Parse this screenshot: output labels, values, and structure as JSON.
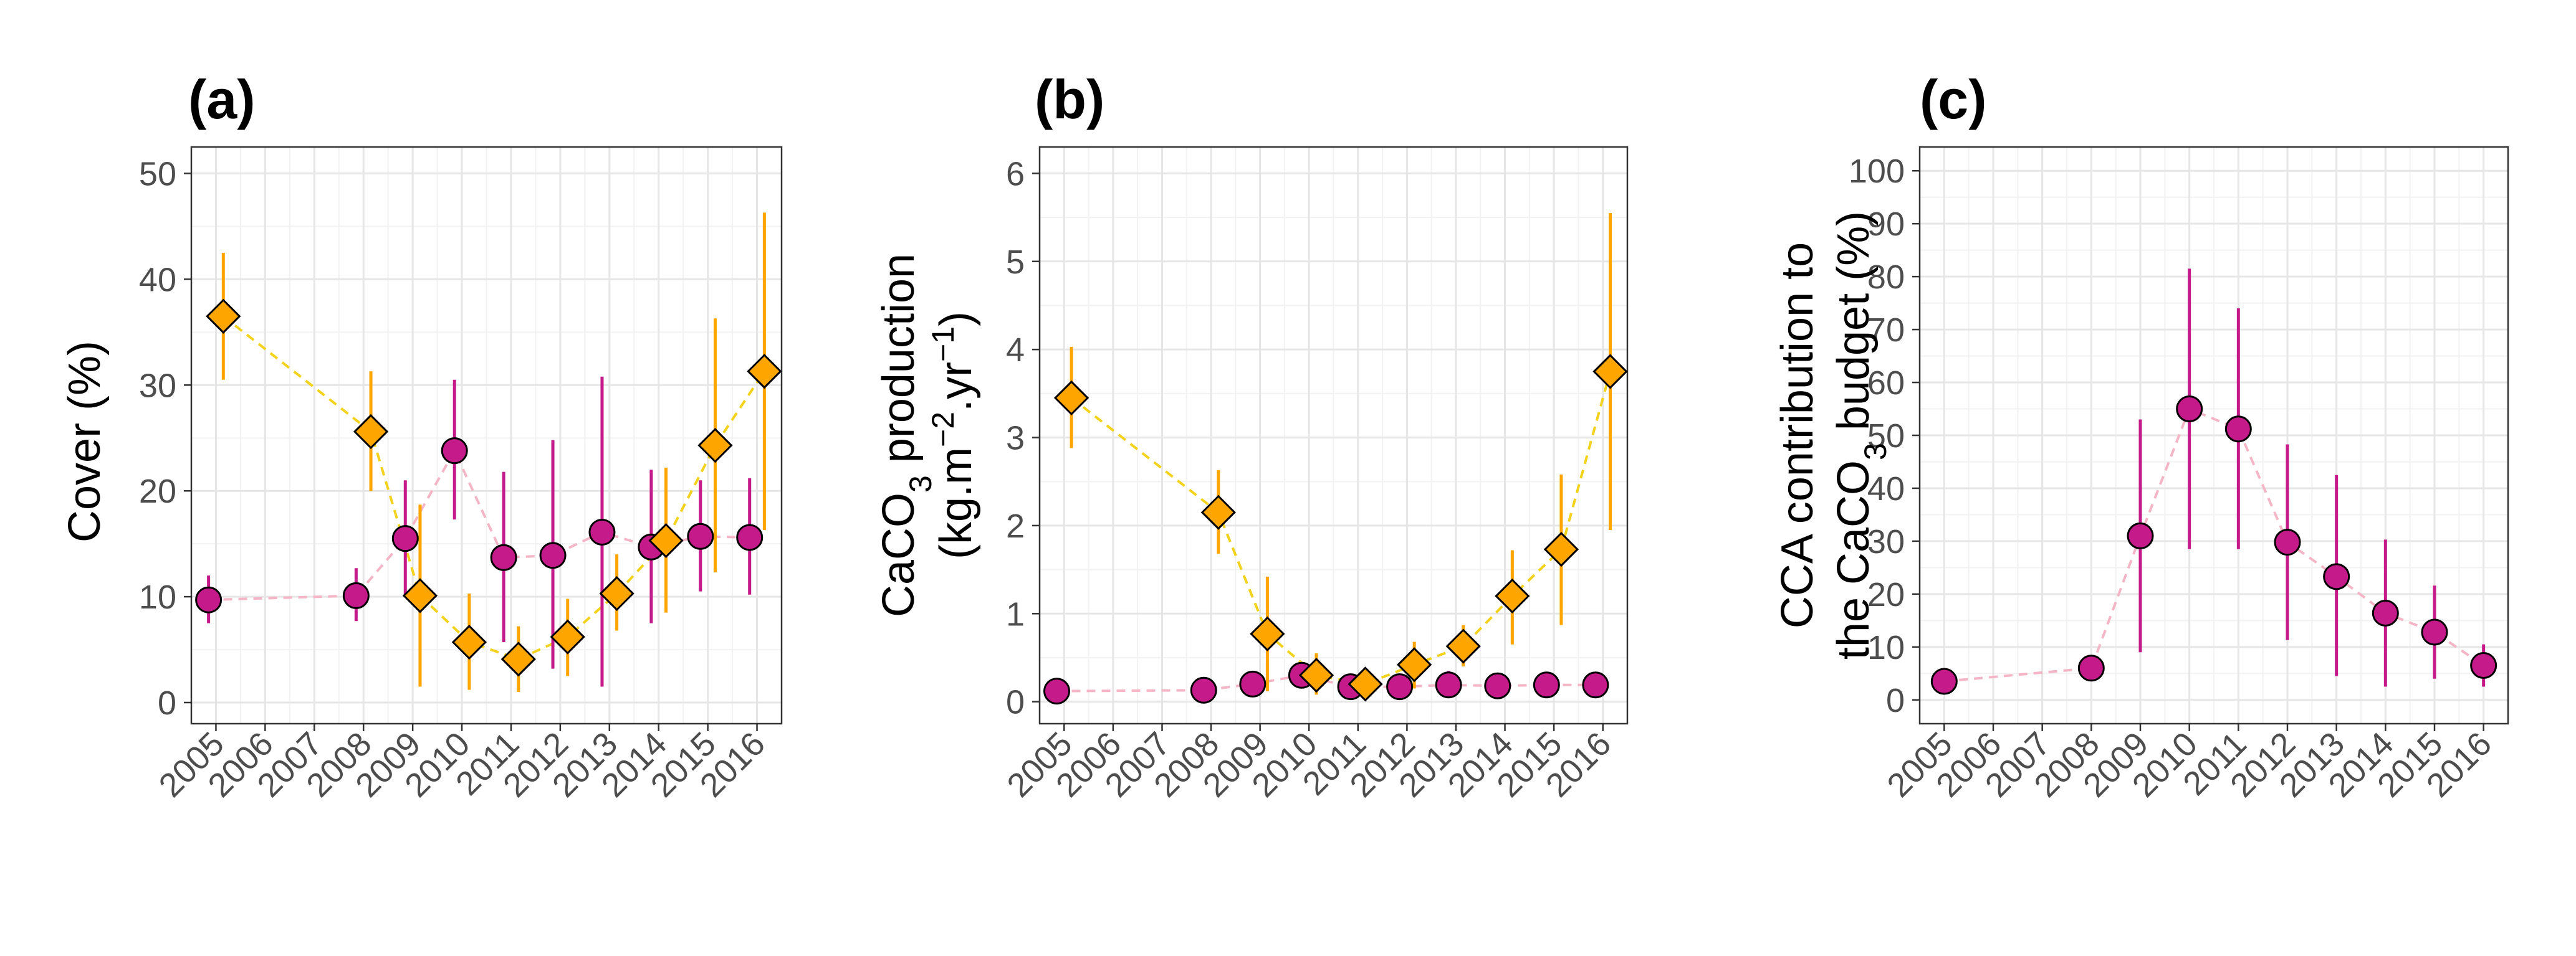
{
  "colors": {
    "cca": "#c51b8a",
    "coral": "#ffa500",
    "cca_line": "#f4b6c6",
    "coral_line": "#f2d21b",
    "grid_major": "#e6e6e6",
    "grid_minor": "#f2f2f2",
    "panel_border": "#333333"
  },
  "chart_data": [
    {
      "type": "scatter",
      "tag": "(a)",
      "ylabel": "Cover (%)",
      "ylim": [
        -2,
        52.5
      ],
      "yticks": [
        0,
        10,
        20,
        30,
        40,
        50
      ],
      "xlim": [
        2004.5,
        2016.5
      ],
      "xticks": [
        2005,
        2006,
        2007,
        2008,
        2009,
        2010,
        2011,
        2012,
        2013,
        2014,
        2015,
        2016
      ],
      "grid": true,
      "series": [
        {
          "marker": "circle",
          "color_key": "cca",
          "line_color_key": "cca_line",
          "points": [
            {
              "x": 2004.85,
              "y": 9.7,
              "lo": 7.5,
              "hi": 12.0
            },
            {
              "x": 2007.85,
              "y": 10.1,
              "lo": 7.7,
              "hi": 12.7
            },
            {
              "x": 2008.85,
              "y": 15.5,
              "lo": 10.0,
              "hi": 21.0
            },
            {
              "x": 2009.85,
              "y": 23.8,
              "lo": 17.3,
              "hi": 30.5
            },
            {
              "x": 2010.85,
              "y": 13.7,
              "lo": 5.7,
              "hi": 21.8
            },
            {
              "x": 2011.85,
              "y": 13.9,
              "lo": 3.2,
              "hi": 24.8
            },
            {
              "x": 2012.85,
              "y": 16.1,
              "lo": 1.5,
              "hi": 30.8
            },
            {
              "x": 2013.85,
              "y": 14.7,
              "lo": 7.5,
              "hi": 22.0
            },
            {
              "x": 2014.85,
              "y": 15.7,
              "lo": 10.5,
              "hi": 21.0
            },
            {
              "x": 2015.85,
              "y": 15.6,
              "lo": 10.2,
              "hi": 21.2
            }
          ]
        },
        {
          "marker": "diamond",
          "color_key": "coral",
          "line_color_key": "coral_line",
          "points": [
            {
              "x": 2005.15,
              "y": 36.5,
              "lo": 30.5,
              "hi": 42.5
            },
            {
              "x": 2008.15,
              "y": 25.6,
              "lo": 20.0,
              "hi": 31.3
            },
            {
              "x": 2009.15,
              "y": 10.1,
              "lo": 1.5,
              "hi": 18.7
            },
            {
              "x": 2010.15,
              "y": 5.7,
              "lo": 1.2,
              "hi": 10.3
            },
            {
              "x": 2011.15,
              "y": 4.1,
              "lo": 1.0,
              "hi": 7.2
            },
            {
              "x": 2012.15,
              "y": 6.2,
              "lo": 2.5,
              "hi": 9.8
            },
            {
              "x": 2013.15,
              "y": 10.3,
              "lo": 6.8,
              "hi": 14.0
            },
            {
              "x": 2014.15,
              "y": 15.3,
              "lo": 8.5,
              "hi": 22.2
            },
            {
              "x": 2015.15,
              "y": 24.3,
              "lo": 12.3,
              "hi": 36.3
            },
            {
              "x": 2016.15,
              "y": 31.3,
              "lo": 16.3,
              "hi": 46.3
            }
          ]
        }
      ]
    },
    {
      "type": "scatter",
      "tag": "(b)",
      "ylabel_line1_pre": "CaCO",
      "ylabel_line1_sub": "3",
      "ylabel_line1_post": " production",
      "ylabel_line2_a": "(kg.m",
      "ylabel_line2_sup1": "−2",
      "ylabel_line2_b": ".yr",
      "ylabel_line2_sup2": "−1",
      "ylabel_line2_c": ")",
      "ylim": [
        -0.25,
        6.3
      ],
      "yticks": [
        0,
        1,
        2,
        3,
        4,
        5,
        6
      ],
      "xlim": [
        2004.5,
        2016.5
      ],
      "xticks": [
        2005,
        2006,
        2007,
        2008,
        2009,
        2010,
        2011,
        2012,
        2013,
        2014,
        2015,
        2016
      ],
      "grid": true,
      "series": [
        {
          "marker": "circle",
          "color_key": "cca",
          "line_color_key": "cca_line",
          "points": [
            {
              "x": 2004.85,
              "y": 0.12,
              "lo": 0.09,
              "hi": 0.15
            },
            {
              "x": 2007.85,
              "y": 0.13,
              "lo": 0.1,
              "hi": 0.16
            },
            {
              "x": 2008.85,
              "y": 0.2,
              "lo": 0.15,
              "hi": 0.25
            },
            {
              "x": 2009.85,
              "y": 0.3,
              "lo": 0.22,
              "hi": 0.38
            },
            {
              "x": 2010.85,
              "y": 0.17,
              "lo": 0.1,
              "hi": 0.25
            },
            {
              "x": 2011.85,
              "y": 0.17,
              "lo": 0.05,
              "hi": 0.3
            },
            {
              "x": 2012.85,
              "y": 0.19,
              "lo": 0.05,
              "hi": 0.35
            },
            {
              "x": 2013.85,
              "y": 0.18,
              "lo": 0.1,
              "hi": 0.27
            },
            {
              "x": 2014.85,
              "y": 0.19,
              "lo": 0.13,
              "hi": 0.26
            },
            {
              "x": 2015.85,
              "y": 0.19,
              "lo": 0.13,
              "hi": 0.26
            }
          ]
        },
        {
          "marker": "diamond",
          "color_key": "coral",
          "line_color_key": "coral_line",
          "points": [
            {
              "x": 2005.15,
              "y": 3.45,
              "lo": 2.88,
              "hi": 4.03
            },
            {
              "x": 2008.15,
              "y": 2.15,
              "lo": 1.68,
              "hi": 2.63
            },
            {
              "x": 2009.15,
              "y": 0.77,
              "lo": 0.12,
              "hi": 1.42
            },
            {
              "x": 2010.15,
              "y": 0.3,
              "lo": 0.08,
              "hi": 0.55
            },
            {
              "x": 2011.15,
              "y": 0.2,
              "lo": 0.05,
              "hi": 0.35
            },
            {
              "x": 2012.15,
              "y": 0.42,
              "lo": 0.15,
              "hi": 0.68
            },
            {
              "x": 2013.15,
              "y": 0.63,
              "lo": 0.4,
              "hi": 0.87
            },
            {
              "x": 2014.15,
              "y": 1.2,
              "lo": 0.65,
              "hi": 1.72
            },
            {
              "x": 2015.15,
              "y": 1.73,
              "lo": 0.87,
              "hi": 2.58
            },
            {
              "x": 2016.15,
              "y": 3.75,
              "lo": 1.95,
              "hi": 5.55
            }
          ]
        }
      ]
    },
    {
      "type": "scatter",
      "tag": "(c)",
      "ylabel_line1": "CCA contribution to",
      "ylabel_line2_pre": "the CaCO",
      "ylabel_line2_sub": "3",
      "ylabel_line2_post": " budget (%)",
      "ylim": [
        -4.5,
        104.5
      ],
      "yticks": [
        0,
        10,
        20,
        30,
        40,
        50,
        60,
        70,
        80,
        90,
        100
      ],
      "xlim": [
        2004.5,
        2016.5
      ],
      "xticks": [
        2005,
        2006,
        2007,
        2008,
        2009,
        2010,
        2011,
        2012,
        2013,
        2014,
        2015,
        2016
      ],
      "grid": true,
      "series": [
        {
          "marker": "circle",
          "color_key": "cca",
          "line_color_key": "cca_line",
          "points": [
            {
              "x": 2005,
              "y": 3.5,
              "lo": 2.5,
              "hi": 4.5
            },
            {
              "x": 2008,
              "y": 6.0,
              "lo": 4.0,
              "hi": 8.0
            },
            {
              "x": 2009,
              "y": 31.0,
              "lo": 9.0,
              "hi": 53.0
            },
            {
              "x": 2010,
              "y": 55.0,
              "lo": 28.5,
              "hi": 81.5
            },
            {
              "x": 2011,
              "y": 51.2,
              "lo": 28.5,
              "hi": 74.0
            },
            {
              "x": 2012,
              "y": 29.8,
              "lo": 11.3,
              "hi": 48.3
            },
            {
              "x": 2013,
              "y": 23.3,
              "lo": 4.5,
              "hi": 42.5
            },
            {
              "x": 2014,
              "y": 16.4,
              "lo": 2.5,
              "hi": 30.3
            },
            {
              "x": 2015,
              "y": 12.8,
              "lo": 4.0,
              "hi": 21.6
            },
            {
              "x": 2016,
              "y": 6.5,
              "lo": 2.5,
              "hi": 10.5
            }
          ]
        }
      ]
    }
  ]
}
